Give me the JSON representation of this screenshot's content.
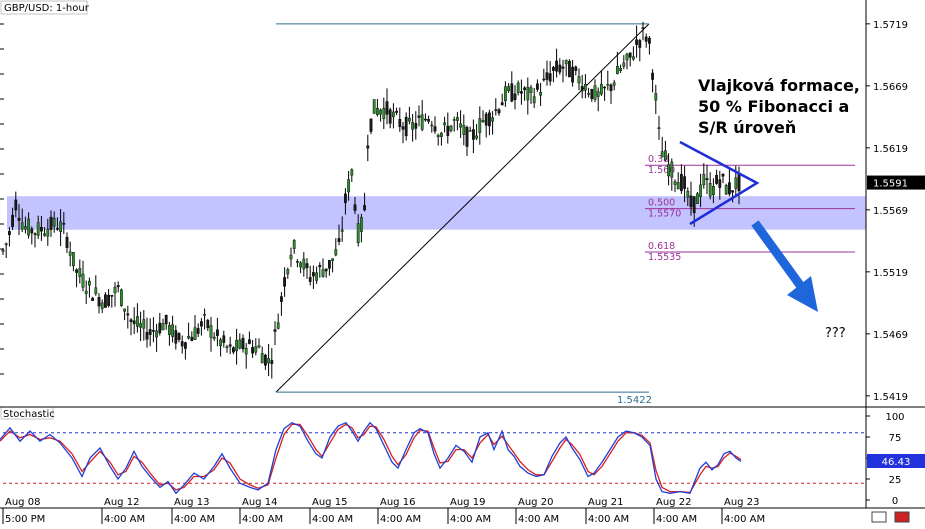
{
  "chart_data": [
    {
      "type": "candlestick",
      "title": "GBP/USD: 1-hour",
      "ylim": [
        1.541,
        1.5735
      ],
      "y_ticks": [
        "1.5719",
        "1.5669",
        "1.5619",
        "1.5569",
        "1.5519",
        "1.5469",
        "1.5419"
      ],
      "last_price": "1.5591",
      "x_date_labels": [
        "Aug 08",
        "Aug 12",
        "Aug 13",
        "Aug 14",
        "Aug 15",
        "Aug 16",
        "Aug 19",
        "Aug 20",
        "Aug 21",
        "Aug 22",
        "Aug 23"
      ],
      "x_time_labels": [
        "5:00 PM",
        "4:00 AM",
        "4:00 AM",
        "4:00 AM",
        "4:00 AM",
        "4:00 AM",
        "4:00 AM",
        "4:00 AM",
        "4:00 AM",
        "4:00 AM",
        "4:00 AM"
      ],
      "price_path_anchors": [
        [
          0,
          1.553
        ],
        [
          8,
          1.5545
        ],
        [
          16,
          1.5575
        ],
        [
          24,
          1.5555
        ],
        [
          36,
          1.5552
        ],
        [
          48,
          1.5555
        ],
        [
          58,
          1.5558
        ],
        [
          66,
          1.5549
        ],
        [
          76,
          1.552
        ],
        [
          90,
          1.5505
        ],
        [
          104,
          1.5495
        ],
        [
          118,
          1.5505
        ],
        [
          132,
          1.5478
        ],
        [
          150,
          1.547
        ],
        [
          165,
          1.5478
        ],
        [
          180,
          1.5462
        ],
        [
          192,
          1.5468
        ],
        [
          205,
          1.5478
        ],
        [
          218,
          1.5465
        ],
        [
          230,
          1.5455
        ],
        [
          245,
          1.546
        ],
        [
          258,
          1.5458
        ],
        [
          270,
          1.5445
        ],
        [
          278,
          1.548
        ],
        [
          285,
          1.5515
        ],
        [
          292,
          1.554
        ],
        [
          300,
          1.553
        ],
        [
          310,
          1.5515
        ],
        [
          320,
          1.552
        ],
        [
          330,
          1.5525
        ],
        [
          340,
          1.554
        ],
        [
          346,
          1.558
        ],
        [
          352,
          1.56
        ],
        [
          358,
          1.555
        ],
        [
          364,
          1.556
        ],
        [
          368,
          1.563
        ],
        [
          374,
          1.565
        ],
        [
          386,
          1.565
        ],
        [
          398,
          1.564
        ],
        [
          410,
          1.5635
        ],
        [
          420,
          1.564
        ],
        [
          430,
          1.5645
        ],
        [
          442,
          1.563
        ],
        [
          455,
          1.564
        ],
        [
          470,
          1.5625
        ],
        [
          482,
          1.564
        ],
        [
          495,
          1.5648
        ],
        [
          506,
          1.5662
        ],
        [
          520,
          1.5665
        ],
        [
          530,
          1.566
        ],
        [
          542,
          1.5668
        ],
        [
          552,
          1.568
        ],
        [
          562,
          1.5685
        ],
        [
          572,
          1.568
        ],
        [
          585,
          1.567
        ],
        [
          597,
          1.566
        ],
        [
          610,
          1.5668
        ],
        [
          620,
          1.5682
        ],
        [
          630,
          1.569
        ],
        [
          638,
          1.5705
        ],
        [
          645,
          1.5712
        ],
        [
          650,
          1.57
        ],
        [
          655,
          1.5665
        ],
        [
          660,
          1.562
        ],
        [
          668,
          1.5605
        ],
        [
          676,
          1.5595
        ],
        [
          684,
          1.559
        ],
        [
          690,
          1.5572
        ],
        [
          696,
          1.5575
        ],
        [
          704,
          1.5592
        ],
        [
          712,
          1.5585
        ],
        [
          720,
          1.5595
        ],
        [
          728,
          1.5585
        ],
        [
          736,
          1.559
        ],
        [
          741,
          1.5591
        ]
      ],
      "fibonacci_levels": [
        {
          "ratio": "0.382",
          "ratio_shown": "0.38",
          "price": "1.5605",
          "price_shown": "1.560"
        },
        {
          "ratio": "0.500",
          "price": "1.5570"
        },
        {
          "ratio": "0.618",
          "price": "1.5535"
        }
      ],
      "fibonacci_swing": {
        "low": "1.5422",
        "high": "1.5719"
      },
      "support_resistance_zone": [
        1.5553,
        1.558
      ],
      "annotations": {
        "main_text": [
          "Vlajková formace,",
          "50 % Fibonacci a",
          "S/R úroveň"
        ],
        "question": "???"
      },
      "colors": {
        "candle_body": "#2e8b2e",
        "zone": "#b8b8ff",
        "fibonacci": "#993399",
        "triangle": "#1f2ed8",
        "arrow": "#1f66dd",
        "last_price_box": "#000000",
        "trendline": "#000000"
      }
    },
    {
      "type": "line",
      "title": "Stochastic",
      "ylim": [
        0,
        100
      ],
      "y_ticks": [
        "100",
        "75",
        "50",
        "25",
        "0"
      ],
      "last_value": "46.43",
      "overbought_level": 80,
      "oversold_level": 20,
      "series": [
        {
          "key": "k",
          "color": "#1f3fd8",
          "values": [
            [
              0,
              72
            ],
            [
              10,
              86
            ],
            [
              20,
              70
            ],
            [
              30,
              82
            ],
            [
              40,
              70
            ],
            [
              50,
              78
            ],
            [
              60,
              68
            ],
            [
              72,
              50
            ],
            [
              82,
              28
            ],
            [
              90,
              50
            ],
            [
              100,
              62
            ],
            [
              110,
              40
            ],
            [
              118,
              25
            ],
            [
              126,
              38
            ],
            [
              134,
              58
            ],
            [
              142,
              40
            ],
            [
              150,
              28
            ],
            [
              160,
              15
            ],
            [
              168,
              22
            ],
            [
              176,
              8
            ],
            [
              184,
              18
            ],
            [
              194,
              32
            ],
            [
              204,
              25
            ],
            [
              214,
              40
            ],
            [
              222,
              55
            ],
            [
              230,
              38
            ],
            [
              240,
              20
            ],
            [
              250,
              15
            ],
            [
              258,
              12
            ],
            [
              268,
              20
            ],
            [
              276,
              60
            ],
            [
              284,
              85
            ],
            [
              292,
              92
            ],
            [
              300,
              88
            ],
            [
              308,
              70
            ],
            [
              316,
              55
            ],
            [
              322,
              50
            ],
            [
              330,
              75
            ],
            [
              338,
              88
            ],
            [
              346,
              92
            ],
            [
              352,
              82
            ],
            [
              358,
              70
            ],
            [
              364,
              82
            ],
            [
              370,
              92
            ],
            [
              376,
              85
            ],
            [
              384,
              65
            ],
            [
              392,
              45
            ],
            [
              398,
              38
            ],
            [
              406,
              60
            ],
            [
              414,
              80
            ],
            [
              420,
              85
            ],
            [
              428,
              80
            ],
            [
              434,
              55
            ],
            [
              440,
              38
            ],
            [
              448,
              50
            ],
            [
              456,
              65
            ],
            [
              464,
              58
            ],
            [
              472,
              45
            ],
            [
              480,
              75
            ],
            [
              488,
              80
            ],
            [
              494,
              60
            ],
            [
              502,
              82
            ],
            [
              508,
              60
            ],
            [
              514,
              52
            ],
            [
              520,
              40
            ],
            [
              528,
              32
            ],
            [
              536,
              28
            ],
            [
              544,
              30
            ],
            [
              552,
              52
            ],
            [
              560,
              68
            ],
            [
              566,
              75
            ],
            [
              572,
              62
            ],
            [
              580,
              48
            ],
            [
              588,
              28
            ],
            [
              594,
              32
            ],
            [
              602,
              45
            ],
            [
              610,
              60
            ],
            [
              618,
              75
            ],
            [
              626,
              82
            ],
            [
              634,
              80
            ],
            [
              642,
              75
            ],
            [
              650,
              65
            ],
            [
              656,
              25
            ],
            [
              662,
              10
            ],
            [
              670,
              8
            ],
            [
              680,
              10
            ],
            [
              690,
              8
            ],
            [
              700,
              38
            ],
            [
              706,
              45
            ],
            [
              712,
              36
            ],
            [
              718,
              42
            ],
            [
              724,
              55
            ],
            [
              730,
              58
            ],
            [
              736,
              50
            ],
            [
              741,
              46
            ]
          ]
        },
        {
          "key": "d",
          "color": "#d82020",
          "values": [
            [
              0,
              70
            ],
            [
              10,
              82
            ],
            [
              20,
              74
            ],
            [
              30,
              78
            ],
            [
              40,
              72
            ],
            [
              50,
              74
            ],
            [
              60,
              70
            ],
            [
              72,
              55
            ],
            [
              82,
              34
            ],
            [
              90,
              45
            ],
            [
              100,
              58
            ],
            [
              110,
              45
            ],
            [
              118,
              30
            ],
            [
              126,
              34
            ],
            [
              134,
              52
            ],
            [
              142,
              45
            ],
            [
              150,
              32
            ],
            [
              160,
              18
            ],
            [
              168,
              20
            ],
            [
              176,
              12
            ],
            [
              184,
              15
            ],
            [
              194,
              28
            ],
            [
              204,
              28
            ],
            [
              214,
              36
            ],
            [
              222,
              50
            ],
            [
              230,
              44
            ],
            [
              240,
              25
            ],
            [
              250,
              18
            ],
            [
              258,
              14
            ],
            [
              268,
              18
            ],
            [
              276,
              50
            ],
            [
              284,
              78
            ],
            [
              292,
              90
            ],
            [
              300,
              90
            ],
            [
              308,
              76
            ],
            [
              316,
              60
            ],
            [
              322,
              52
            ],
            [
              330,
              68
            ],
            [
              338,
              84
            ],
            [
              346,
              90
            ],
            [
              352,
              86
            ],
            [
              358,
              74
            ],
            [
              364,
              78
            ],
            [
              370,
              88
            ],
            [
              376,
              87
            ],
            [
              384,
              72
            ],
            [
              392,
              52
            ],
            [
              398,
              42
            ],
            [
              406,
              54
            ],
            [
              414,
              74
            ],
            [
              420,
              83
            ],
            [
              428,
              82
            ],
            [
              434,
              62
            ],
            [
              440,
              44
            ],
            [
              448,
              46
            ],
            [
              456,
              60
            ],
            [
              464,
              60
            ],
            [
              472,
              50
            ],
            [
              480,
              68
            ],
            [
              488,
              78
            ],
            [
              494,
              66
            ],
            [
              502,
              76
            ],
            [
              508,
              66
            ],
            [
              514,
              56
            ],
            [
              520,
              46
            ],
            [
              528,
              36
            ],
            [
              536,
              30
            ],
            [
              544,
              30
            ],
            [
              552,
              46
            ],
            [
              560,
              62
            ],
            [
              566,
              72
            ],
            [
              572,
              66
            ],
            [
              580,
              54
            ],
            [
              588,
              34
            ],
            [
              594,
              30
            ],
            [
              602,
              40
            ],
            [
              610,
              55
            ],
            [
              618,
              70
            ],
            [
              626,
              80
            ],
            [
              634,
              80
            ],
            [
              642,
              77
            ],
            [
              650,
              68
            ],
            [
              656,
              35
            ],
            [
              662,
              15
            ],
            [
              670,
              10
            ],
            [
              680,
              10
            ],
            [
              690,
              9
            ],
            [
              700,
              30
            ],
            [
              706,
              40
            ],
            [
              712,
              38
            ],
            [
              718,
              40
            ],
            [
              724,
              50
            ],
            [
              730,
              56
            ],
            [
              736,
              52
            ],
            [
              741,
              48
            ]
          ]
        }
      ]
    }
  ]
}
